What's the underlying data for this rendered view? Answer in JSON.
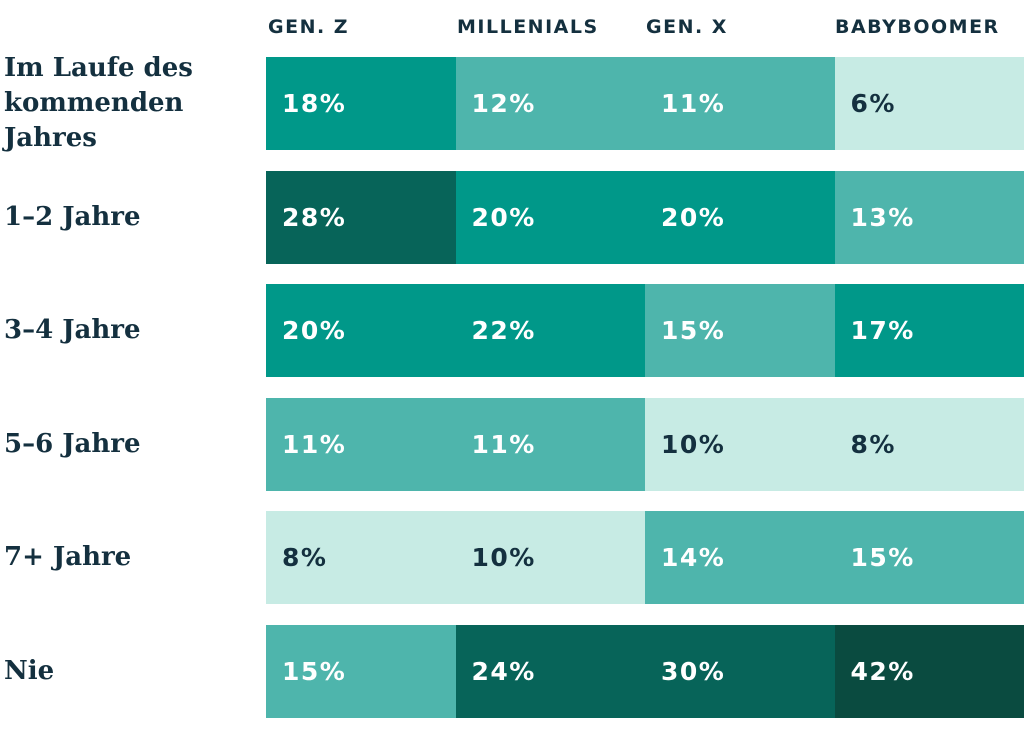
{
  "palette": {
    "pale": "#C7EBE4",
    "medium": "#4EB5AC",
    "teal": "#009889",
    "dark": "#076459",
    "darkest": "#0A4B40",
    "navy": "#14303F",
    "white": "#FFFFFF",
    "background": "#FFFFFF"
  },
  "header": {
    "columns": [
      "GEN. Z",
      "MILLENIALS",
      "GEN. X",
      "BABYBOOMER"
    ]
  },
  "rows": [
    {
      "label": "Im Laufe des kommenden Jahres",
      "cells": [
        {
          "label": "18%",
          "shade": "teal"
        },
        {
          "label": "12%",
          "shade": "medium"
        },
        {
          "label": "11%",
          "shade": "medium"
        },
        {
          "label": "6%",
          "shade": "pale"
        }
      ]
    },
    {
      "label": "1–2 Jahre",
      "cells": [
        {
          "label": "28%",
          "shade": "dark"
        },
        {
          "label": "20%",
          "shade": "teal"
        },
        {
          "label": "20%",
          "shade": "teal"
        },
        {
          "label": "13%",
          "shade": "medium"
        }
      ]
    },
    {
      "label": "3–4 Jahre",
      "cells": [
        {
          "label": "20%",
          "shade": "teal"
        },
        {
          "label": "22%",
          "shade": "teal"
        },
        {
          "label": "15%",
          "shade": "medium"
        },
        {
          "label": "17%",
          "shade": "teal"
        }
      ]
    },
    {
      "label": "5–6 Jahre",
      "cells": [
        {
          "label": "11%",
          "shade": "medium"
        },
        {
          "label": "11%",
          "shade": "medium"
        },
        {
          "label": "10%",
          "shade": "pale"
        },
        {
          "label": "8%",
          "shade": "pale"
        }
      ]
    },
    {
      "label": "7+ Jahre",
      "cells": [
        {
          "label": "8%",
          "shade": "pale"
        },
        {
          "label": "10%",
          "shade": "pale"
        },
        {
          "label": "14%",
          "shade": "medium"
        },
        {
          "label": "15%",
          "shade": "medium"
        }
      ]
    },
    {
      "label": "Nie",
      "cells": [
        {
          "label": "15%",
          "shade": "medium"
        },
        {
          "label": "24%",
          "shade": "dark"
        },
        {
          "label": "30%",
          "shade": "dark"
        },
        {
          "label": "42%",
          "shade": "darkest"
        }
      ]
    }
  ],
  "chart_data": {
    "type": "heatmap",
    "title": "",
    "columns": [
      "Gen. Z",
      "Millenials",
      "Gen. X",
      "Babyboomer"
    ],
    "row_categories": [
      "Im Laufe des kommenden Jahres",
      "1–2 Jahre",
      "3–4 Jahre",
      "5–6 Jahre",
      "7+ Jahre",
      "Nie"
    ],
    "unit": "%",
    "values": [
      [
        18,
        12,
        11,
        6
      ],
      [
        28,
        20,
        20,
        13
      ],
      [
        20,
        22,
        15,
        17
      ],
      [
        11,
        11,
        10,
        8
      ],
      [
        8,
        10,
        14,
        15
      ],
      [
        15,
        24,
        30,
        42
      ]
    ],
    "color_bins": [
      {
        "range": "<=10",
        "hex": "#C7EBE4"
      },
      {
        "range": "11-15",
        "hex": "#4EB5AC"
      },
      {
        "range": "16-22",
        "hex": "#009889"
      },
      {
        "range": "23-30",
        "hex": "#076459"
      },
      {
        "range": ">30",
        "hex": "#0A4B40"
      }
    ],
    "legend": "none",
    "grid": "off"
  }
}
